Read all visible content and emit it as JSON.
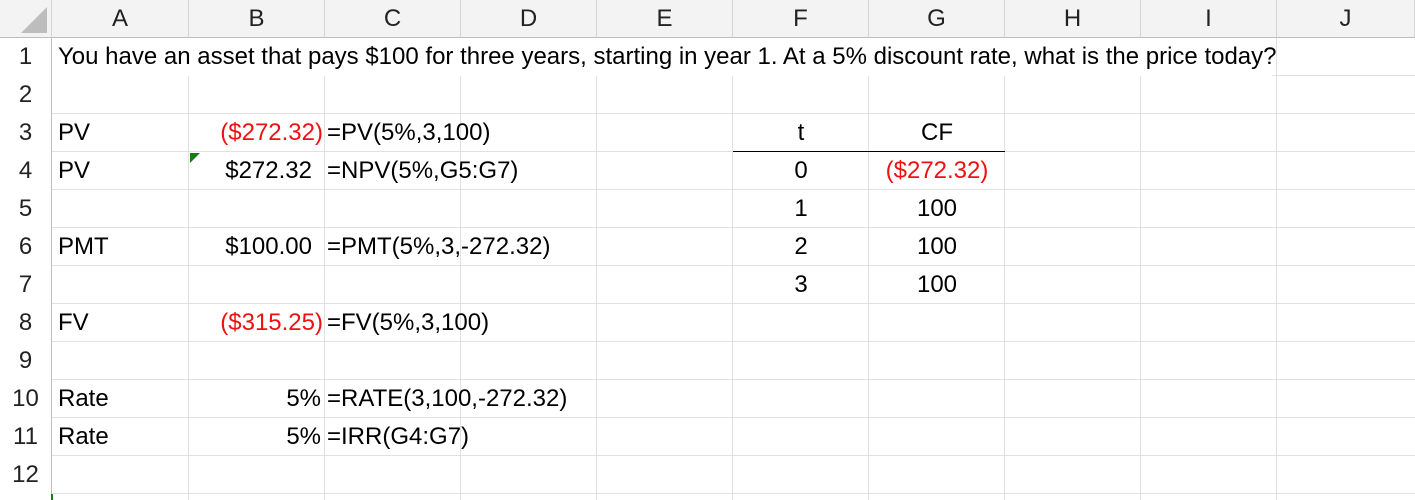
{
  "sheet": {
    "columns": [
      "A",
      "B",
      "C",
      "D",
      "E",
      "F",
      "G",
      "H",
      "I",
      "J"
    ],
    "rows": [
      "1",
      "2",
      "3",
      "4",
      "5",
      "6",
      "7",
      "8",
      "9",
      "10",
      "11",
      "12"
    ]
  },
  "cells": {
    "A1": "You have an asset that pays $100 for three years, starting in year 1. At a 5% discount rate, what is the price today?",
    "A3": "PV",
    "B3": "($272.32)",
    "C3": "=PV(5%,3,100)",
    "A4": "PV",
    "B4": "$272.32",
    "C4": "=NPV(5%,G5:G7)",
    "A6": "PMT",
    "B6": "$100.00",
    "C6": "=PMT(5%,3,-272.32)",
    "A8": "FV",
    "B8": "($315.25)",
    "C8": "=FV(5%,3,100)",
    "A10": "Rate",
    "B10": "5%",
    "C10": "=RATE(3,100,-272.32)",
    "A11": "Rate",
    "B11": "5%",
    "C11": "=IRR(G4:G7)",
    "F3": "t",
    "G3": "CF",
    "F4": "0",
    "G4": "($272.32)",
    "F5": "1",
    "G5": "100",
    "F6": "2",
    "G6": "100",
    "F7": "3",
    "G7": "100"
  },
  "colors": {
    "negative": "#ee1111",
    "error_indicator": "#1a7a1a",
    "header_bg": "#f3f3f3",
    "gridline": "#e1e1e1"
  }
}
